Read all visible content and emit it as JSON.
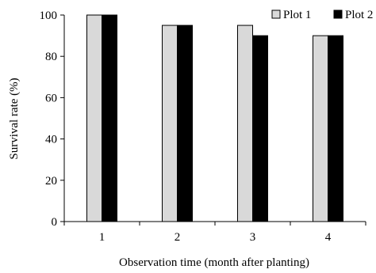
{
  "chart_data": {
    "type": "bar",
    "categories": [
      "1",
      "2",
      "3",
      "4"
    ],
    "series": [
      {
        "name": "Plot 1",
        "values": [
          100,
          95,
          95,
          90
        ],
        "color": "#d9d9d9"
      },
      {
        "name": "Plot 2",
        "values": [
          100,
          95,
          90,
          90
        ],
        "color": "#000000"
      }
    ],
    "xlabel": "Observation time (month after planting)",
    "ylabel": "Survival rate (%)",
    "ylim": [
      0,
      100
    ],
    "yticks": [
      "0",
      "20",
      "40",
      "60",
      "80",
      "100"
    ],
    "grid": false,
    "legend_position": "top-right"
  }
}
